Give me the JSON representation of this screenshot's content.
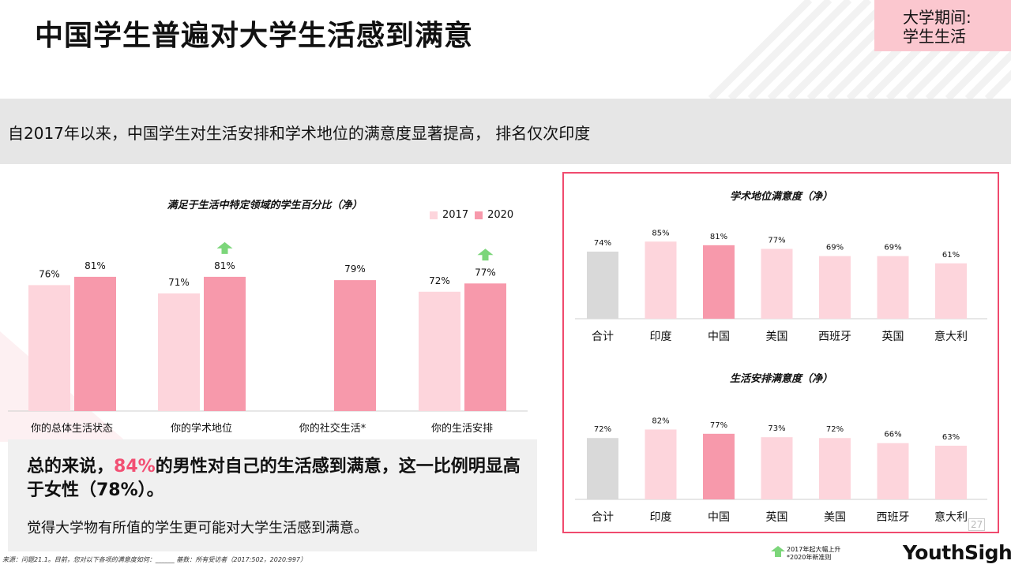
{
  "header": {
    "title": "中国学生普遍对大学生活感到满意",
    "section_tag": [
      "大学期间:",
      "学生生活"
    ]
  },
  "band_text": "自2017年以来，中国学生对生活安排和学术地位的满意度显著提高， 排名仅次印度",
  "colors": {
    "y2017": "#fdd5dc",
    "y2020": "#f799ab",
    "china": "#f799ab",
    "overall": "#d9d9d9",
    "other": "#fdd5dc",
    "accent": "#f24f73",
    "border": "#f04a6e",
    "up_arrow": "#7cd67a"
  },
  "summary": {
    "line_pre": "总的来说，",
    "highlight": "84%",
    "line_post": "的男性对自己的生活感到满意，这一比例明显高于女性（78%）。",
    "sub": "觉得大学物有所值的学生更可能对大学生活感到满意。"
  },
  "source_text": "来源：问题21.1。目前，您对以下各项的满意度如何：______ 基数：所有受访者（2017:502，2020:997）",
  "footnote": {
    "up_label": "2017年起大幅上升",
    "new_label": "*2020年新准则"
  },
  "logo": "YouthSight",
  "page_number": "27",
  "chart_data": [
    {
      "type": "bar",
      "title": "满足于生活中特定领域的学生百分比（净）",
      "categories": [
        "你的总体生活状态",
        "你的学术地位",
        "你的社交生活*",
        "你的生活安排"
      ],
      "series": [
        {
          "name": "2017",
          "values": [
            76,
            71,
            null,
            72
          ],
          "labels": [
            "76%",
            "71%",
            "",
            "72%"
          ]
        },
        {
          "name": "2020",
          "values": [
            81,
            81,
            79,
            77
          ],
          "labels": [
            "81%",
            "81%",
            "79%",
            "77%"
          ]
        }
      ],
      "significant_increase": [
        false,
        true,
        false,
        true
      ],
      "ylim": [
        0,
        100
      ],
      "legend": "top-right"
    },
    {
      "type": "bar",
      "title": "学术地位满意度（净）",
      "categories": [
        "合计",
        "印度",
        "中国",
        "美国",
        "西班牙",
        "英国",
        "意大利"
      ],
      "values": [
        74,
        85,
        81,
        77,
        69,
        69,
        61
      ],
      "labels": [
        "74%",
        "85%",
        "81%",
        "77%",
        "69%",
        "69%",
        "61%"
      ],
      "ylim": [
        0,
        100
      ]
    },
    {
      "type": "bar",
      "title": "生活安排满意度（净）",
      "categories": [
        "合计",
        "印度",
        "中国",
        "英国",
        "美国",
        "西班牙",
        "意大利"
      ],
      "values": [
        72,
        82,
        77,
        73,
        72,
        66,
        63
      ],
      "labels": [
        "72%",
        "82%",
        "77%",
        "73%",
        "72%",
        "66%",
        "63%"
      ],
      "ylim": [
        0,
        100
      ]
    }
  ]
}
